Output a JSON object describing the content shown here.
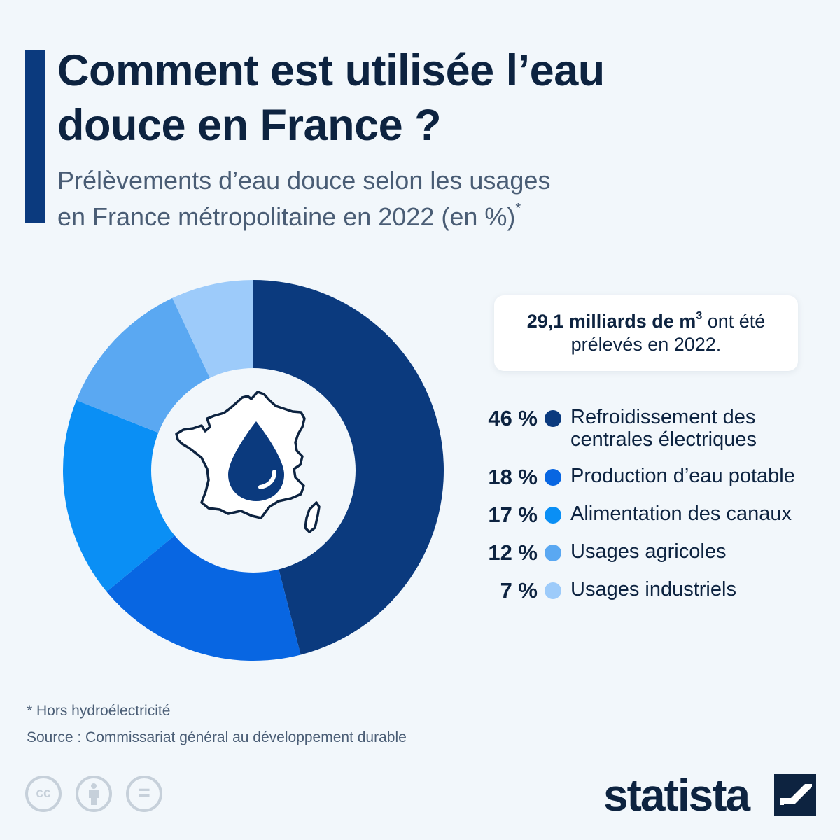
{
  "header": {
    "title_line1": "Comment est utilisée l’eau",
    "title_line2": "douce en France ?",
    "subtitle_line1": "Prélèvements d’eau douce selon les usages",
    "subtitle_line2": "en France métropolitaine en 2022 (en %)",
    "subtitle_mark": "*"
  },
  "callout": {
    "bold_text": "29,1 milliards de m",
    "bold_sup": "3",
    "rest_line1": " ont été",
    "line2": "prélevés en 2022."
  },
  "chart_data": {
    "type": "pie",
    "variant": "donut",
    "unit": "%",
    "categories": [
      "Refroidissement des centrales électriques",
      "Production d’eau potable",
      "Alimentation des canaux",
      "Usages agricoles",
      "Usages industriels"
    ],
    "values": [
      46,
      18,
      17,
      12,
      7
    ],
    "value_labels": [
      "46 %",
      "18 %",
      "17 %",
      "12 %",
      "7 %"
    ],
    "colors": [
      "#0b3a7e",
      "#0866e2",
      "#0a8ff5",
      "#5aa8f2",
      "#9dcbfa"
    ],
    "legend_placement": "right"
  },
  "legend": {
    "items": [
      {
        "pct": "46 %",
        "line1": "Refroidissement des",
        "line2": "centrales électriques"
      },
      {
        "pct": "18 %",
        "line1": "Production d’eau potable",
        "line2": ""
      },
      {
        "pct": "17 %",
        "line1": "Alimentation des canaux",
        "line2": ""
      },
      {
        "pct": "12 %",
        "line1": "Usages agricoles",
        "line2": ""
      },
      {
        "pct": "7 %",
        "line1": "Usages industriels",
        "line2": ""
      }
    ]
  },
  "center_icon": "france-water-drop-icon",
  "footer": {
    "footnote": "* Hors hydroélectricité",
    "source": "Source : Commissariat général au développement durable",
    "cc_icons": [
      "cc-icon",
      "attribution-icon",
      "no-derivatives-icon"
    ],
    "cc_text": "cc",
    "nd_text": "=",
    "logo_text": "statista"
  }
}
